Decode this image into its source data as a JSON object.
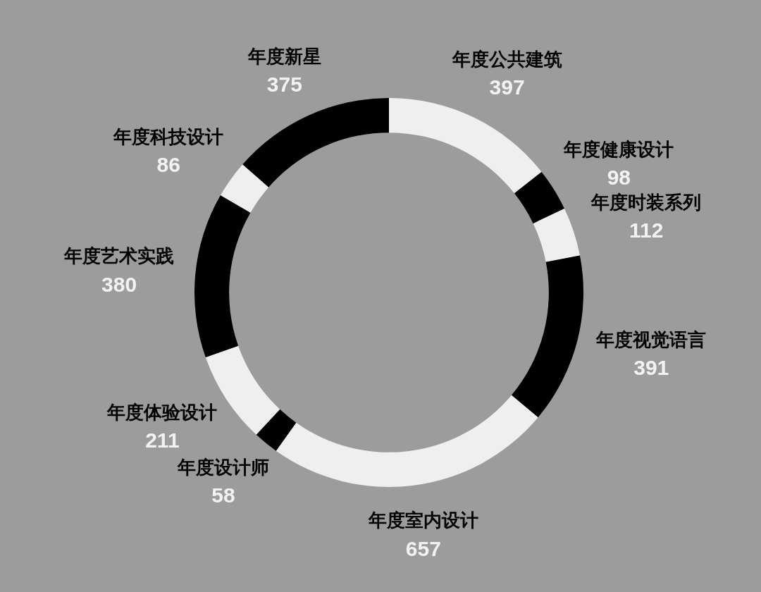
{
  "chart_data": {
    "type": "donut",
    "categories": [
      "年度公共建筑",
      "年度健康设计",
      "年度时装系列",
      "年度视觉语言",
      "年度室内设计",
      "年度设计师",
      "年度体验设计",
      "年度艺术实践",
      "年度科技设计",
      "年度新星"
    ],
    "values": [
      397,
      98,
      112,
      391,
      657,
      58,
      211,
      380,
      86,
      375
    ],
    "colors": [
      "#efefef",
      "#000000",
      "#efefef",
      "#000000",
      "#efefef",
      "#000000",
      "#efefef",
      "#000000",
      "#efefef",
      "#000000"
    ],
    "data_labels": true
  }
}
